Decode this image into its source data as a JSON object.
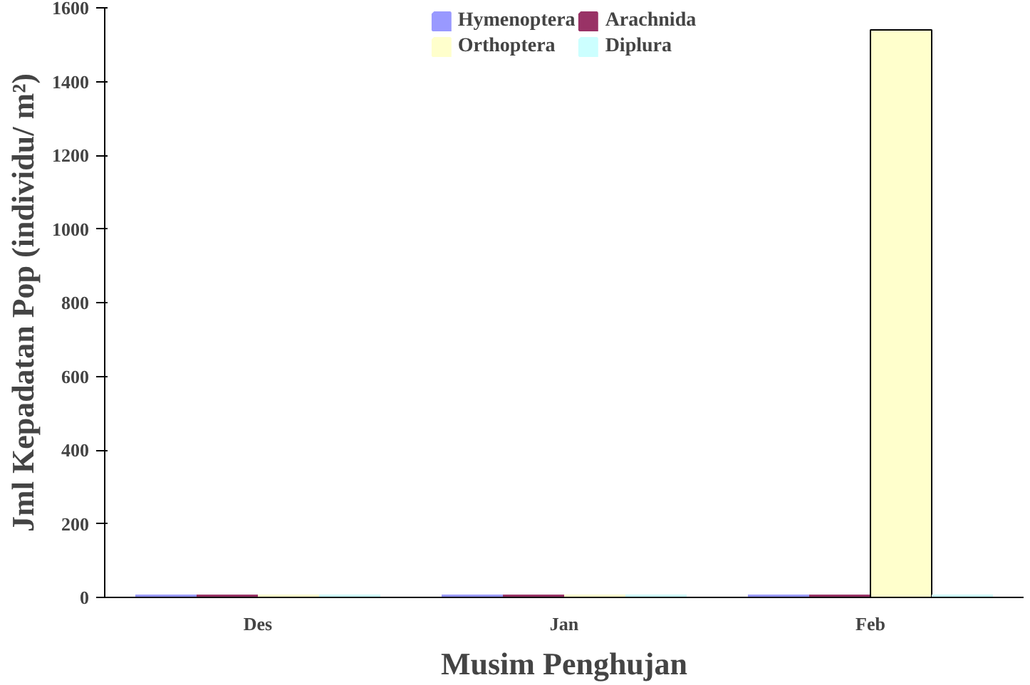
{
  "chart_data": {
    "type": "bar",
    "xlabel": "Musim Penghujan",
    "ylabel": "Jml Kepadatan Pop\n(individu/ m²)",
    "categories": [
      "Des",
      "Jan",
      "Feb"
    ],
    "series": [
      {
        "name": "Hymenoptera",
        "color": "#9999ff",
        "values": [
          0,
          0,
          0
        ]
      },
      {
        "name": "Arachnida",
        "color": "#993366",
        "values": [
          0,
          0,
          0
        ]
      },
      {
        "name": "Orthoptera",
        "color": "#ffffcc",
        "values": [
          0,
          0,
          1540
        ]
      },
      {
        "name": "Diplura",
        "color": "#ccffff",
        "values": [
          0,
          0,
          0
        ]
      }
    ],
    "ylim": [
      0,
      1600
    ],
    "yticks": [
      0,
      200,
      400,
      600,
      800,
      1000,
      1200,
      1400,
      1600
    ],
    "grid": false,
    "legend": "top"
  }
}
